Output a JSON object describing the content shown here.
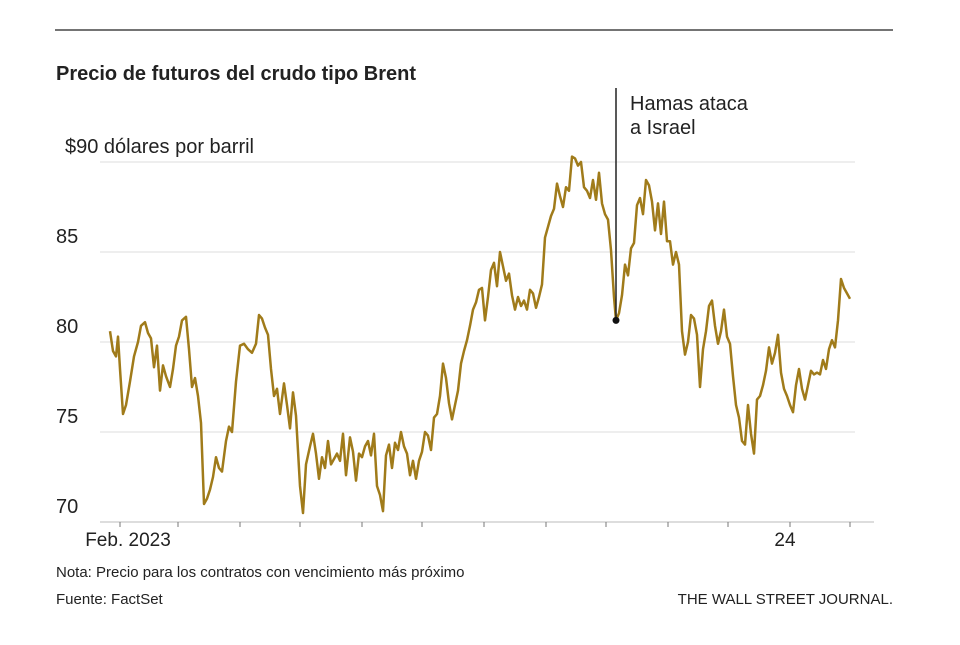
{
  "chart_data": {
    "type": "line",
    "title": "Precio de futuros del crudo tipo Brent",
    "note": "Nota: Precio para los contratos con vencimiento más próximo",
    "source": "Fuente: FactSet",
    "publisher": "THE WALL STREET JOURNAL.",
    "annotation": {
      "lines": [
        "Hamas ataca",
        "a Israel"
      ],
      "x": 248,
      "y": 81.2
    },
    "xlim": [
      -10,
      377
    ],
    "xticks": [
      {
        "value": 0,
        "label": "Feb. 2023"
      },
      {
        "value": 29,
        "label": null
      },
      {
        "value": 60,
        "label": null
      },
      {
        "value": 90,
        "label": null
      },
      {
        "value": 121,
        "label": null
      },
      {
        "value": 151,
        "label": null
      },
      {
        "value": 182,
        "label": null
      },
      {
        "value": 213,
        "label": null
      },
      {
        "value": 243,
        "label": null
      },
      {
        "value": 274,
        "label": null
      },
      {
        "value": 304,
        "label": null
      },
      {
        "value": 335,
        "label": "24"
      },
      {
        "value": 365,
        "label": null
      }
    ],
    "ylim": [
      70,
      93.5
    ],
    "yticks": [
      70,
      75,
      80,
      85,
      {
        "value": 90,
        "label": "$90 dólares por barril"
      }
    ],
    "grid": true,
    "x": [
      -5,
      -3.5,
      -2,
      -1,
      0,
      1.5,
      3,
      5,
      7,
      9,
      10.5,
      12.5,
      14,
      15.5,
      17,
      18.5,
      20,
      21.5,
      23,
      25,
      26.5,
      28,
      29.5,
      31,
      33,
      34.5,
      36,
      37.5,
      39,
      40.5,
      42,
      43.5,
      45,
      46.5,
      48,
      49.5,
      51,
      53,
      54.5,
      56,
      58,
      60,
      62,
      64,
      66,
      68,
      69.5,
      71,
      72.5,
      74,
      75.5,
      77,
      78.5,
      80,
      82,
      83.5,
      85,
      86.5,
      88,
      90,
      91.5,
      93,
      95,
      96.5,
      98,
      99.5,
      101,
      102.5,
      104,
      105.5,
      107,
      108.5,
      110,
      111.5,
      113,
      115,
      116.5,
      118,
      119.5,
      121,
      122.5,
      124,
      125.5,
      127,
      128.5,
      130,
      131.5,
      133,
      134.5,
      136,
      137.5,
      139,
      140.5,
      142,
      143.5,
      145,
      146.5,
      148,
      149.5,
      151,
      152.5,
      154,
      155.5,
      157,
      158.5,
      160,
      161.5,
      163,
      164.5,
      166,
      167.5,
      169,
      170.5,
      172,
      173.5,
      175,
      176.5,
      178,
      179.5,
      181,
      182.5,
      184,
      185.5,
      187,
      188.5,
      190,
      191.5,
      193,
      194.5,
      196,
      197.5,
      199,
      200.5,
      202,
      203.5,
      205,
      206.5,
      208,
      209.5,
      211,
      212.5,
      214,
      215.5,
      217,
      218.5,
      220,
      221.5,
      223,
      224.5,
      226,
      227.5,
      229,
      230.5,
      232,
      233.5,
      235,
      236.5,
      238,
      239.5,
      241,
      242.5,
      244,
      245.5,
      247,
      248,
      249.5,
      251,
      252.5,
      254,
      255.5,
      257,
      258.5,
      260,
      261.5,
      263,
      264.5,
      266,
      267.5,
      269,
      270.5,
      272,
      273.5,
      275,
      276.5,
      278,
      279.5,
      281,
      282.5,
      284,
      285.5,
      287,
      288.5,
      290,
      291.5,
      293,
      294.5,
      296,
      297.5,
      299,
      300.5,
      302,
      303.5,
      305,
      306.5,
      308,
      309.5,
      311,
      312.5,
      314,
      315.5,
      317,
      318.5,
      320,
      321.5,
      323,
      324.5,
      326,
      327.5,
      329,
      330.5,
      332,
      333.5,
      335,
      336.5,
      338,
      339.5,
      341,
      342.5,
      344,
      345.5,
      347,
      348.5,
      350,
      351.5,
      353,
      354.5,
      356,
      357.5,
      359,
      360.5,
      362,
      363.5,
      365
    ],
    "series": [
      {
        "color": "#a07b1a",
        "values": [
          80.6,
          79.5,
          79.2,
          80.3,
          78.5,
          76.0,
          76.5,
          77.8,
          79.2,
          80.0,
          80.9,
          81.1,
          80.5,
          80.2,
          78.6,
          79.8,
          77.3,
          78.7,
          78.1,
          77.5,
          78.5,
          79.8,
          80.3,
          81.2,
          81.4,
          79.6,
          77.5,
          78.0,
          77.0,
          75.5,
          71.0,
          71.3,
          71.8,
          72.5,
          73.6,
          73.0,
          72.8,
          74.5,
          75.3,
          75.0,
          77.8,
          79.8,
          79.9,
          79.6,
          79.4,
          79.9,
          81.5,
          81.3,
          80.8,
          80.4,
          78.5,
          77.0,
          77.4,
          76.0,
          77.7,
          76.5,
          75.2,
          77.2,
          75.9,
          72.0,
          70.5,
          73.2,
          74.2,
          74.9,
          73.8,
          72.4,
          73.6,
          73.0,
          74.5,
          73.2,
          73.5,
          73.8,
          73.4,
          74.9,
          72.6,
          74.7,
          73.9,
          72.3,
          73.8,
          73.6,
          74.2,
          74.5,
          73.7,
          74.9,
          72.0,
          71.5,
          70.6,
          73.7,
          74.3,
          73.0,
          74.4,
          74.0,
          75.0,
          74.2,
          73.8,
          72.6,
          73.4,
          72.4,
          73.4,
          73.9,
          75.0,
          74.8,
          74.0,
          75.8,
          76.0,
          77.0,
          78.8,
          78.0,
          76.6,
          75.7,
          76.5,
          77.3,
          78.8,
          79.5,
          80.1,
          80.9,
          81.8,
          82.2,
          82.9,
          83.0,
          81.2,
          82.5,
          84.0,
          84.4,
          83.1,
          85.0,
          84.2,
          83.4,
          83.8,
          82.6,
          81.8,
          82.5,
          82.0,
          82.3,
          81.8,
          82.9,
          82.7,
          81.9,
          82.5,
          83.2,
          85.8,
          86.4,
          87.0,
          87.4,
          88.8,
          88.1,
          87.5,
          88.6,
          88.4,
          90.3,
          90.2,
          89.8,
          90.0,
          88.6,
          88.4,
          88.0,
          89.0,
          87.9,
          89.4,
          87.7,
          87.1,
          86.8,
          85.1,
          82.5,
          81.2,
          81.6,
          82.6,
          84.3,
          83.7,
          85.2,
          85.5,
          87.6,
          88.0,
          87.1,
          89.0,
          88.7,
          87.8,
          86.2,
          87.7,
          86.0,
          87.8,
          85.6,
          85.6,
          84.3,
          85.0,
          84.3,
          80.6,
          79.3,
          80.0,
          81.5,
          81.3,
          80.4,
          77.5,
          79.6,
          80.6,
          82.0,
          82.3,
          80.9,
          79.9,
          80.6,
          81.8,
          80.3,
          79.9,
          78.1,
          76.5,
          75.8,
          74.5,
          74.3,
          76.5,
          74.9,
          73.8,
          76.8,
          77.0,
          77.6,
          78.4,
          79.7,
          78.8,
          79.4,
          80.4,
          78.3,
          77.4,
          77.0,
          76.5,
          76.1,
          77.6,
          78.5,
          77.4,
          76.8,
          77.6,
          78.4,
          78.2,
          78.3,
          78.2,
          79.0,
          78.5,
          79.6,
          80.1,
          79.7,
          81.2,
          83.5,
          83.0,
          82.7,
          82.4
        ]
      }
    ]
  }
}
